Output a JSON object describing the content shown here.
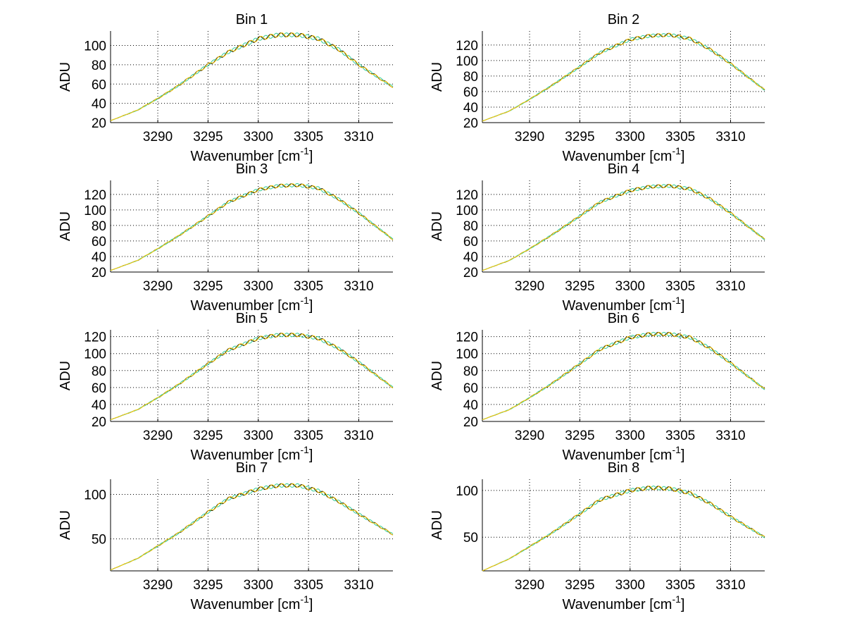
{
  "chart_data": [
    {
      "type": "line",
      "title": "Bin 1",
      "xlabel": "Wavenumber [cm",
      "xlabel_sup": "-1",
      "xlabel_end": "]",
      "ylabel": "ADU",
      "xlim": [
        3285.3,
        3313.4
      ],
      "ylim": [
        20,
        115
      ],
      "xticks": [
        3290,
        3295,
        3300,
        3305,
        3310
      ],
      "yticks": [
        20,
        40,
        60,
        80,
        100
      ],
      "grid": true,
      "x": [
        3285.3,
        3288,
        3290,
        3292,
        3295,
        3297,
        3300,
        3302,
        3304,
        3306,
        3308,
        3310,
        3313.4
      ],
      "y": [
        22,
        33,
        45,
        58,
        80,
        93,
        107,
        111,
        111,
        107,
        96,
        80,
        57
      ]
    },
    {
      "type": "line",
      "title": "Bin 2",
      "xlabel": "Wavenumber [cm",
      "xlabel_sup": "-1",
      "xlabel_end": "]",
      "ylabel": "ADU",
      "xlim": [
        3285.3,
        3313.4
      ],
      "ylim": [
        20,
        138
      ],
      "xticks": [
        3290,
        3295,
        3300,
        3305,
        3310
      ],
      "yticks": [
        20,
        40,
        60,
        80,
        100,
        120
      ],
      "grid": true,
      "x": [
        3285.3,
        3288,
        3290,
        3292,
        3295,
        3297,
        3300,
        3302,
        3304,
        3306,
        3308,
        3310,
        3313.4
      ],
      "y": [
        22,
        35,
        50,
        66,
        92,
        110,
        127,
        132,
        133,
        128,
        114,
        96,
        62
      ]
    },
    {
      "type": "line",
      "title": "Bin 3",
      "xlabel": "Wavenumber [cm",
      "xlabel_sup": "-1",
      "xlabel_end": "]",
      "ylabel": "ADU",
      "xlim": [
        3285.3,
        3313.4
      ],
      "ylim": [
        20,
        138
      ],
      "xticks": [
        3290,
        3295,
        3300,
        3305,
        3310
      ],
      "yticks": [
        20,
        40,
        60,
        80,
        100,
        120
      ],
      "grid": true,
      "x": [
        3285.3,
        3288,
        3290,
        3292,
        3295,
        3297,
        3300,
        3302,
        3304,
        3306,
        3308,
        3310,
        3313.4
      ],
      "y": [
        22,
        35,
        50,
        66,
        92,
        110,
        126,
        131,
        132,
        128,
        114,
        96,
        62
      ]
    },
    {
      "type": "line",
      "title": "Bin 4",
      "xlabel": "Wavenumber [cm",
      "xlabel_sup": "-1",
      "xlabel_end": "]",
      "ylabel": "ADU",
      "xlim": [
        3285.3,
        3313.4
      ],
      "ylim": [
        20,
        138
      ],
      "xticks": [
        3290,
        3295,
        3300,
        3305,
        3310
      ],
      "yticks": [
        20,
        40,
        60,
        80,
        100,
        120
      ],
      "grid": true,
      "x": [
        3285.3,
        3288,
        3290,
        3292,
        3295,
        3297,
        3300,
        3302,
        3304,
        3306,
        3308,
        3310,
        3313.4
      ],
      "y": [
        22,
        35,
        50,
        66,
        92,
        110,
        125,
        130,
        131,
        127,
        114,
        96,
        62
      ]
    },
    {
      "type": "line",
      "title": "Bin 5",
      "xlabel": "Wavenumber [cm",
      "xlabel_sup": "-1",
      "xlabel_end": "]",
      "ylabel": "ADU",
      "xlim": [
        3285.3,
        3313.4
      ],
      "ylim": [
        20,
        128
      ],
      "xticks": [
        3290,
        3295,
        3300,
        3305,
        3310
      ],
      "yticks": [
        20,
        40,
        60,
        80,
        100,
        120
      ],
      "grid": true,
      "x": [
        3285.3,
        3288,
        3290,
        3292,
        3295,
        3297,
        3300,
        3302,
        3304,
        3306,
        3308,
        3310,
        3313.4
      ],
      "y": [
        22,
        34,
        48,
        63,
        88,
        104,
        118,
        122,
        122,
        118,
        106,
        90,
        60
      ]
    },
    {
      "type": "line",
      "title": "Bin 6",
      "xlabel": "Wavenumber [cm",
      "xlabel_sup": "-1",
      "xlabel_end": "]",
      "ylabel": "ADU",
      "xlim": [
        3285.3,
        3313.4
      ],
      "ylim": [
        20,
        128
      ],
      "xticks": [
        3290,
        3295,
        3300,
        3305,
        3310
      ],
      "yticks": [
        20,
        40,
        60,
        80,
        100,
        120
      ],
      "grid": true,
      "x": [
        3285.3,
        3288,
        3290,
        3292,
        3295,
        3297,
        3300,
        3302,
        3304,
        3306,
        3308,
        3310,
        3313.4
      ],
      "y": [
        22,
        34,
        48,
        63,
        88,
        105,
        119,
        123,
        123,
        119,
        106,
        89,
        58
      ]
    },
    {
      "type": "line",
      "title": "Bin 7",
      "xlabel": "Wavenumber [cm",
      "xlabel_sup": "-1",
      "xlabel_end": "]",
      "ylabel": "ADU",
      "xlim": [
        3285.3,
        3313.4
      ],
      "ylim": [
        14,
        117
      ],
      "xticks": [
        3290,
        3295,
        3300,
        3305,
        3310
      ],
      "yticks": [
        50,
        100
      ],
      "grid": true,
      "x": [
        3285.3,
        3288,
        3290,
        3292,
        3295,
        3297,
        3300,
        3302,
        3304,
        3306,
        3308,
        3310,
        3313.4
      ],
      "y": [
        15,
        28,
        42,
        56,
        80,
        95,
        106,
        110,
        110,
        104,
        92,
        78,
        55
      ]
    },
    {
      "type": "line",
      "title": "Bin 8",
      "xlabel": "Wavenumber [cm",
      "xlabel_sup": "-1",
      "xlabel_end": "]",
      "ylabel": "ADU",
      "xlim": [
        3285.3,
        3313.4
      ],
      "ylim": [
        14,
        112
      ],
      "xticks": [
        3290,
        3295,
        3300,
        3305,
        3310
      ],
      "yticks": [
        50,
        100
      ],
      "grid": true,
      "x": [
        3285.3,
        3288,
        3290,
        3292,
        3295,
        3297,
        3300,
        3302,
        3304,
        3306,
        3308,
        3310,
        3313.4
      ],
      "y": [
        14,
        27,
        40,
        53,
        75,
        90,
        100,
        103,
        102,
        97,
        86,
        72,
        50
      ]
    }
  ],
  "colors": {
    "series": [
      "#000000",
      "#33cc99",
      "#ffcc00"
    ]
  }
}
